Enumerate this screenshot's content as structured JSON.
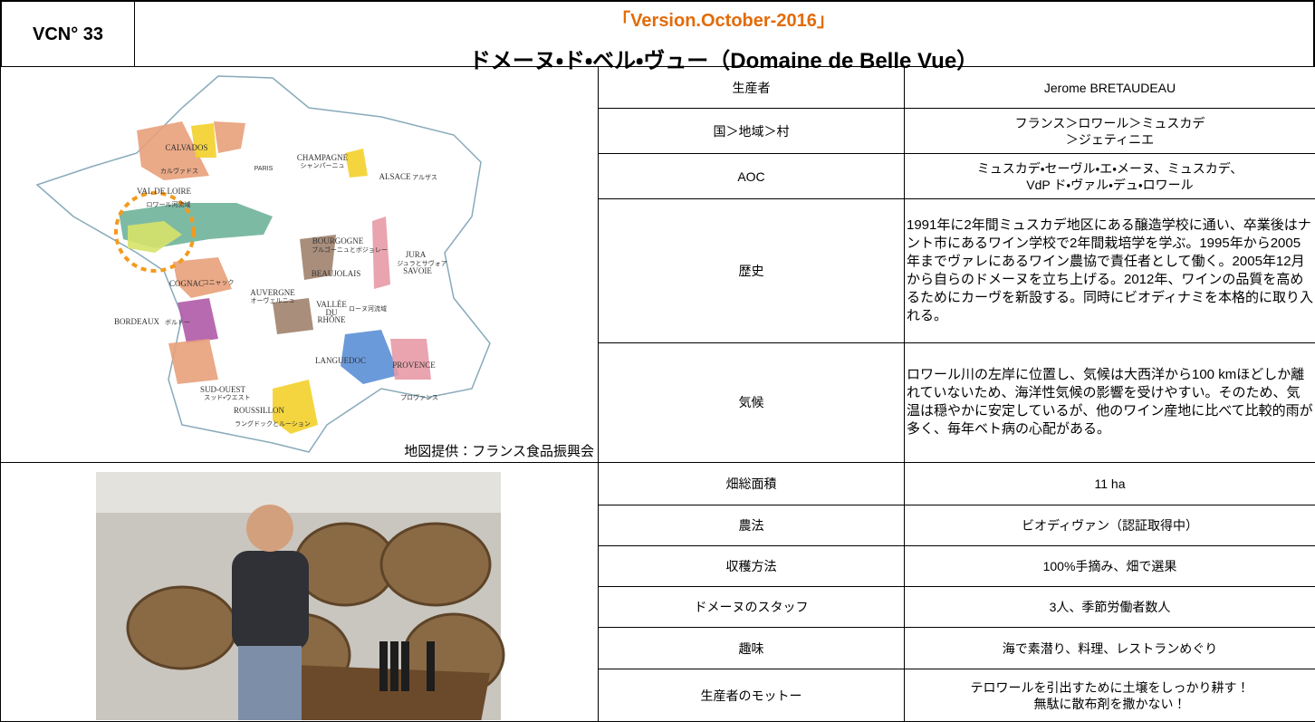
{
  "header": {
    "id": "VCN° 33",
    "version": "「Version.October-2016」",
    "title": "ドメーヌ・ド・ベル・ヴュー（Domaine de Belle Vue）"
  },
  "map": {
    "labels": [
      "CHAMPAGNE",
      "シャンパーニュ",
      "CALVADOS",
      "カルヴァドス",
      "PARIS",
      "ALSACE",
      "アルザス",
      "VAL DE LOIRE",
      "ロワール河流域",
      "BOURGOGNE",
      "ブルゴーニュとボジョレー",
      "JURA",
      "ジュラとサヴォア",
      "SAVOIE",
      "BEAUJOLAIS",
      "COGNAC",
      "コニャック",
      "AUVERGNE",
      "オーヴェルニュ",
      "VALLÉE",
      "DU",
      "RHÔNE",
      "ローヌ河流域",
      "BORDEAUX",
      "ボルドー",
      "LANGUEDOC",
      "PROVENCE",
      "SUD-OUEST",
      "スッド・ウエスト",
      "プロヴァンス",
      "ROUSSILLON",
      "ラングドックとルーション"
    ],
    "credit": "地図提供：フランス食品振興会"
  },
  "table": {
    "rows": [
      {
        "label": "生産者",
        "value": [
          "Jerome BRETAUDEAU"
        ]
      },
      {
        "label": "国＞地域＞村",
        "value": [
          "フランス＞ロワール＞ミュスカデ",
          "＞ジェティニエ"
        ]
      },
      {
        "label": "AOC",
        "value": [
          "ミュスカデ・セーヴル・エ・メーヌ、ミュスカデ、",
          "VdP ド・ヴァル・デュ・ロワール"
        ]
      },
      {
        "label": "歴史",
        "value": [
          "1991年に2年間ミュスカデ地区にある醸造学校に通い、卒業後はナント市にあるワイン学校で2年間栽培学を学ぶ。1995年から2005年までヴァレにあるワイン農協で責任者として働く。2005年12月から自らのドメーヌを立ち上げる。2012年、ワインの品質を高めるためにカーヴを新設する。同時にビオディナミを本格的に取り入れる。"
        ]
      },
      {
        "label": "気候",
        "value": [
          "ロワール川の左岸に位置し、気候は大西洋から100 kmほどしか離れていないため、海洋性気候の影響を受けやすい。そのため、気温は穏やかに安定しているが、他のワイン産地に比べて比較的雨が多く、毎年ベト病の心配がある。"
        ]
      },
      {
        "label": "畑総面積",
        "value": [
          "11 ha"
        ]
      },
      {
        "label": "農法",
        "value": [
          "ビオディヴァン（認証取得中）"
        ]
      },
      {
        "label": "収穫方法",
        "value": [
          "100%手摘み、畑で選果"
        ]
      },
      {
        "label": "ドメーヌのスタッフ",
        "value": [
          "3人、季節労働者数人"
        ]
      },
      {
        "label": "趣味",
        "value": [
          "海で素潜り、料理、レストランめぐり"
        ]
      },
      {
        "label": "生産者のモットー",
        "value": [
          "テロワールを引出すために土壌をしっかり耕す！",
          "無駄に散布剤を撒かない！"
        ]
      }
    ]
  }
}
